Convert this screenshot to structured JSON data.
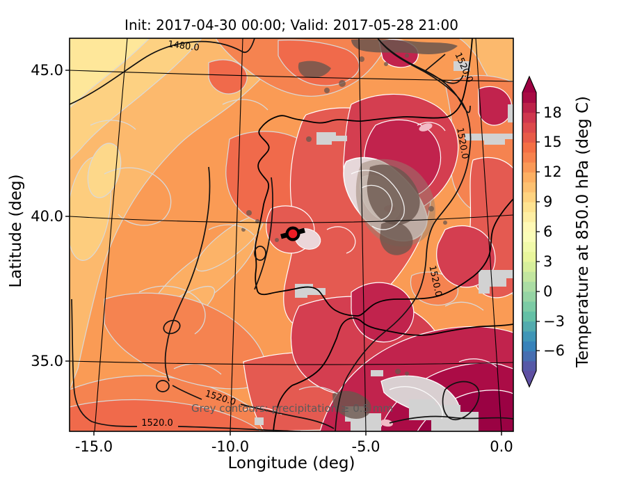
{
  "figure": {
    "title": "Init: 2017-04-30 00:00; Valid: 2017-05-28 21:00"
  },
  "axes": {
    "xlabel": "Longitude (deg)",
    "ylabel": "Latitude (deg)",
    "x_tick_labels": [
      "-15.0",
      "-10.0",
      "-5.0",
      "0.0"
    ],
    "y_tick_labels": [
      "45.0",
      "40.0",
      "35.0"
    ]
  },
  "colorbar": {
    "label": "Temperature at 850.0 hPa (deg C)",
    "tick_labels": [
      "18",
      "15",
      "12",
      "9",
      "6",
      "3",
      "0",
      "−3",
      "−6"
    ],
    "vmin": -8,
    "vmax": 20,
    "cmap": "Spectral_r",
    "extend": "both",
    "over_color": "#9e0142",
    "under_color": "#5e4fa2",
    "band_colors": [
      "#5659a7",
      "#466eb1",
      "#3782ba",
      "#3f96b7",
      "#52abae",
      "#64c0a6",
      "#7ccba5",
      "#95d4a4",
      "#abdda4",
      "#c2e69f",
      "#d7ef9b",
      "#e9f69c",
      "#f1faaa",
      "#fbfdb8",
      "#fff9b6",
      "#feeea3",
      "#fee391",
      "#fed380",
      "#fdc171",
      "#fdb063",
      "#fa9957",
      "#f7824d",
      "#f46f44",
      "#e85b48",
      "#dd4a4c",
      "#cf374e",
      "#bc2249",
      "#a80b44"
    ]
  },
  "map": {
    "annotation": "Grey contours: precipitation ≥ 0.5 mm",
    "label_1480": "1480.0",
    "label_1520": "1520.0",
    "marker": {
      "color": "#ee1c25"
    }
  },
  "chart_data": {
    "type": "heatmap",
    "title": "Init: 2017-04-30 00:00; Valid: 2017-05-28 21:00",
    "xlabel": "Longitude (deg)",
    "ylabel": "Latitude (deg)",
    "x_ticks": [
      -15.0,
      -10.0,
      -5.0,
      0.0
    ],
    "y_ticks": [
      45.0,
      40.0,
      35.0
    ],
    "xlim": [
      -16.4,
      0.5
    ],
    "ylim": [
      33.4,
      46.2
    ],
    "grid": true,
    "field": "temperature at 850.0 hPa (deg C), filled contours, 1 degC steps",
    "colorbar": {
      "label": "Temperature at 850.0 hPa (deg C)",
      "ticks": [
        18,
        15,
        12,
        9,
        6,
        3,
        0,
        -3,
        -6
      ],
      "vmin": -8,
      "vmax": 20,
      "cmap": "Spectral_r",
      "extend": "both",
      "position": "right"
    },
    "approx_grid": {
      "lons": [
        -15,
        -11,
        -7.5,
        -4,
        0
      ],
      "lats": [
        45.5,
        42.5,
        40,
        37.5,
        34.5
      ],
      "values_degC": [
        [
          9,
          12,
          14,
          16,
          12
        ],
        [
          12,
          13,
          15,
          17,
          16
        ],
        [
          12,
          13,
          15,
          16,
          16
        ],
        [
          13,
          14,
          16,
          18,
          17
        ],
        [
          13,
          15,
          18,
          19,
          19
        ]
      ]
    },
    "geopotential_contour_labels_m": [
      1480.0,
      1520.0
    ],
    "precipitation_annotation": "Grey contours: precipitation ≥ 0.5 mm",
    "marker": {
      "lon": -7.6,
      "lat": 39.1
    }
  }
}
